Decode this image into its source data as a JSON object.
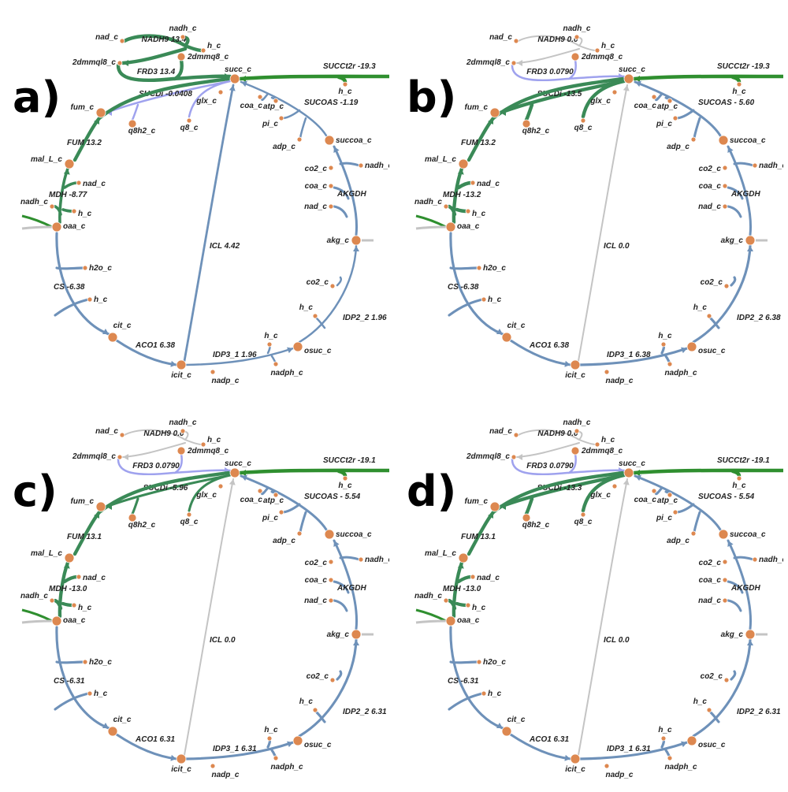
{
  "colors": {
    "strong_flux": "#3a8a57",
    "steel_flux": "#6e91b9",
    "light_flux": "#9fa2ee",
    "zero_flux": "#c4c4c4",
    "exchange": "#2f8f2f",
    "node": "#dd8850"
  },
  "panels": [
    {
      "label": "a)",
      "reactions": {
        "NADH9": {
          "text": "NADH9 13.4",
          "flux": 13.4
        },
        "FRD3": {
          "text": "FRD3 13.4",
          "flux": 13.4
        },
        "SUCDi": {
          "text": "SUCDi -0.0408",
          "flux": -0.0408
        },
        "SUCCt2r": {
          "text": "SUCCt2r -19.3",
          "flux": -19.3
        },
        "SUCOAS": {
          "text": "SUCOAS -1.19",
          "flux": -1.19
        },
        "FUM": {
          "text": "FUM 13.2",
          "flux": 13.2
        },
        "MDH": {
          "text": "MDH -8.77",
          "flux": -8.77
        },
        "CS": {
          "text": "CS -6.38",
          "flux": -6.38
        },
        "ACO1": {
          "text": "ACO1 6.38",
          "flux": 6.38
        },
        "ICL": {
          "text": "ICL 4.42",
          "flux": 4.42
        },
        "IDP3_1": {
          "text": "IDP3_1 1.96",
          "flux": 1.96
        },
        "IDP2_2": {
          "text": "IDP2_2 1.96",
          "flux": 1.96
        },
        "AKGDH": {
          "text": "AKGDH",
          "flux": null
        }
      }
    },
    {
      "label": "b)",
      "reactions": {
        "NADH9": {
          "text": "NADH9 0.0",
          "flux": 0.0
        },
        "FRD3": {
          "text": "FRD3 0.0790",
          "flux": 0.079
        },
        "SUCDi": {
          "text": "SUCDi -13.5",
          "flux": -13.5
        },
        "SUCCt2r": {
          "text": "SUCCt2r -19.3",
          "flux": -19.3
        },
        "SUCOAS": {
          "text": "SUCOAS - 5.60",
          "flux": -5.6
        },
        "FUM": {
          "text": "FUM 13.2",
          "flux": 13.2
        },
        "MDH": {
          "text": "MDH -13.2",
          "flux": -13.2
        },
        "CS": {
          "text": "CS -6.38",
          "flux": -6.38
        },
        "ACO1": {
          "text": "ACO1 6.38",
          "flux": 6.38
        },
        "ICL": {
          "text": "ICL 0.0",
          "flux": 0.0
        },
        "IDP3_1": {
          "text": "IDP3_1 6.38",
          "flux": 6.38
        },
        "IDP2_2": {
          "text": "IDP2_2 6.38",
          "flux": 6.38
        },
        "AKGDH": {
          "text": "AKGDH",
          "flux": null
        }
      }
    },
    {
      "label": "c)",
      "reactions": {
        "NADH9": {
          "text": "NADH9 0.0",
          "flux": 0.0
        },
        "FRD3": {
          "text": "FRD3 0.0790",
          "flux": 0.079
        },
        "SUCDi": {
          "text": "SUCDi -5.96",
          "flux": -5.96
        },
        "SUCCt2r": {
          "text": "SUCCt2r -19.1",
          "flux": -19.1
        },
        "SUCOAS": {
          "text": "SUCOAS - 5.54",
          "flux": -5.54
        },
        "FUM": {
          "text": "FUM 13.1",
          "flux": 13.1
        },
        "MDH": {
          "text": "MDH -13.0",
          "flux": -13.0
        },
        "CS": {
          "text": "CS -6.31",
          "flux": -6.31
        },
        "ACO1": {
          "text": "ACO1 6.31",
          "flux": 6.31
        },
        "ICL": {
          "text": "ICL 0.0",
          "flux": 0.0
        },
        "IDP3_1": {
          "text": "IDP3_1 6.31",
          "flux": 6.31
        },
        "IDP2_2": {
          "text": "IDP2_2 6.31",
          "flux": 6.31
        },
        "AKGDH": {
          "text": "AKGDH",
          "flux": null
        }
      }
    },
    {
      "label": "d)",
      "reactions": {
        "NADH9": {
          "text": "NADH9 0.0",
          "flux": 0.0
        },
        "FRD3": {
          "text": "FRD3 0.0790",
          "flux": 0.079
        },
        "SUCDi": {
          "text": "SUCDi -13.3",
          "flux": -13.3
        },
        "SUCCt2r": {
          "text": "SUCCt2r -19.1",
          "flux": -19.1
        },
        "SUCOAS": {
          "text": "SUCOAS - 5.54",
          "flux": -5.54
        },
        "FUM": {
          "text": "FUM 13.1",
          "flux": 13.1
        },
        "MDH": {
          "text": "MDH -13.0",
          "flux": -13.0
        },
        "CS": {
          "text": "CS -6.31",
          "flux": -6.31
        },
        "ACO1": {
          "text": "ACO1 6.31",
          "flux": 6.31
        },
        "ICL": {
          "text": "ICL 0.0",
          "flux": 0.0
        },
        "IDP3_1": {
          "text": "IDP3_1 6.31",
          "flux": 6.31
        },
        "IDP2_2": {
          "text": "IDP2_2 6.31",
          "flux": 6.31
        },
        "AKGDH": {
          "text": "AKGDH",
          "flux": null
        }
      }
    }
  ],
  "metabolites": {
    "nad_c": "nad_c",
    "nadh_c": "nadh_c",
    "h_c": "h_c",
    "2dmmql8_c": "2dmmql8_c",
    "2dmmq8_c": "2dmmq8_c",
    "succ_c": "succ_c",
    "fum_c": "fum_c",
    "q8h2_c": "q8h2_c",
    "q8_c": "q8_c",
    "glx_c": "glx_c",
    "coa_c": "coa_c",
    "atp_c": "atp_c",
    "pi_c": "pi_c",
    "adp_c": "adp_c",
    "succoa_c": "succoa_c",
    "co2_c": "co2_c",
    "akg_c": "akg_c",
    "mal_L_c": "mal_L_c",
    "oaa_c": "oaa_c",
    "h2o_c": "h2o_c",
    "cit_c": "cit_c",
    "icit_c": "icit_c",
    "nadp_c": "nadp_c",
    "nadph_c": "nadph_c",
    "osuc_c": "osuc_c"
  }
}
